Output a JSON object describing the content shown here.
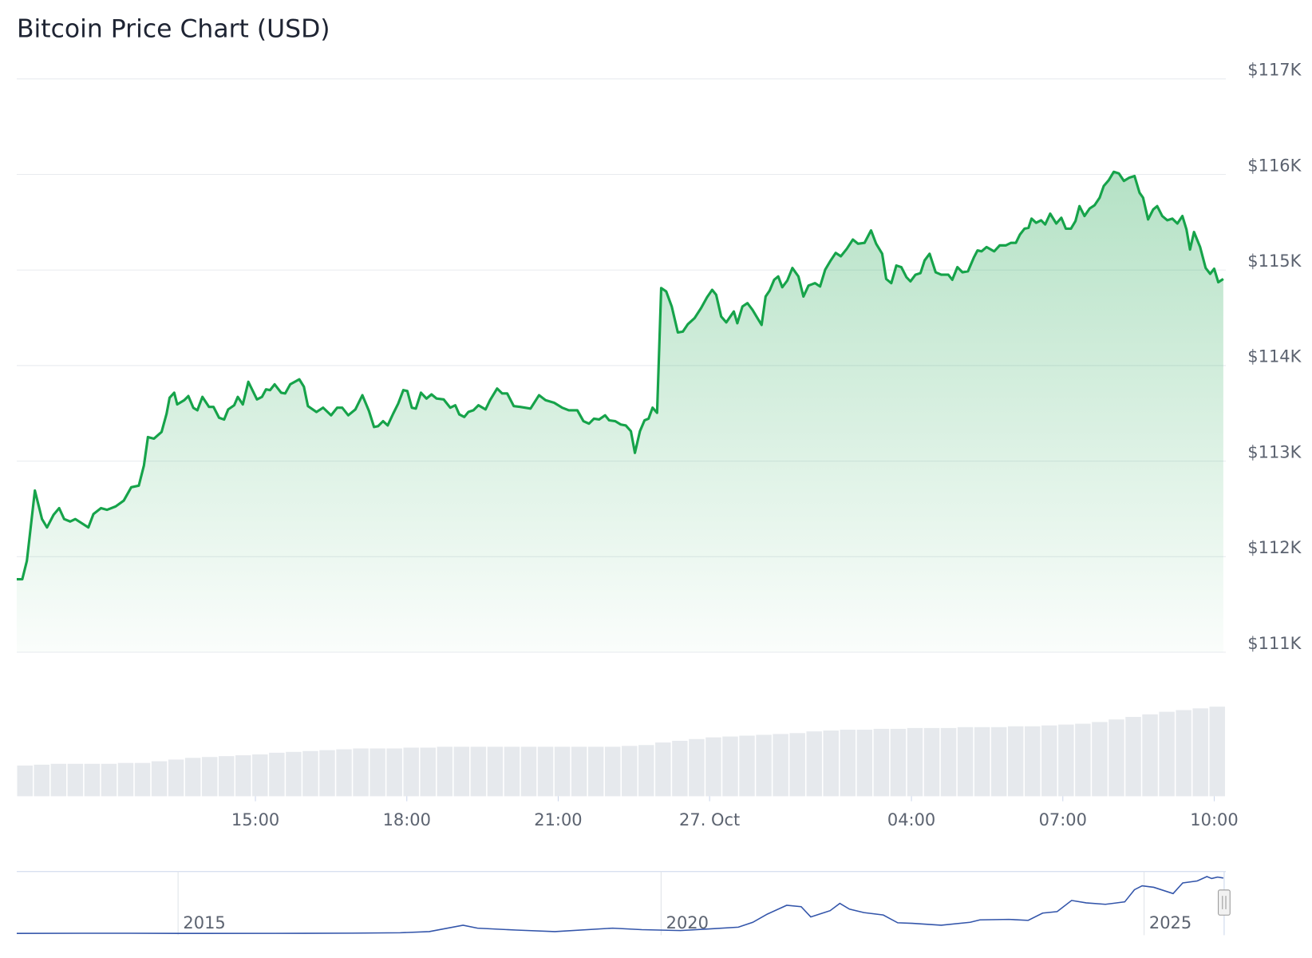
{
  "chart_data": {
    "type": "line",
    "title": "Bitcoin Price Chart (USD)",
    "color": "#16a34a",
    "grid": true,
    "area": true,
    "x": [
      10.27,
      10.38,
      10.47,
      10.63,
      10.77,
      10.87,
      11.0,
      11.11,
      11.21,
      11.33,
      11.43,
      11.69,
      11.79,
      11.94,
      12.06,
      12.23,
      12.39,
      12.54,
      12.69,
      12.79,
      12.87,
      12.99,
      13.14,
      13.24,
      13.3,
      13.39,
      13.45,
      13.59,
      13.67,
      13.77,
      13.85,
      13.95,
      14.08,
      14.17,
      14.28,
      14.38,
      14.46,
      14.58,
      14.65,
      14.75,
      14.86,
      15.03,
      15.13,
      15.21,
      15.29,
      15.38,
      15.51,
      15.59,
      15.69,
      15.87,
      15.96,
      16.04,
      16.21,
      16.34,
      16.5,
      16.62,
      16.72,
      16.84,
      16.98,
      17.12,
      17.25,
      17.35,
      17.43,
      17.53,
      17.62,
      17.73,
      17.83,
      17.93,
      18.01,
      18.1,
      18.18,
      18.28,
      18.39,
      18.49,
      18.59,
      18.73,
      18.86,
      18.96,
      19.04,
      19.14,
      19.22,
      19.32,
      19.42,
      19.56,
      19.65,
      19.79,
      19.89,
      19.99,
      20.12,
      20.25,
      20.45,
      20.62,
      20.75,
      20.92,
      21.08,
      21.21,
      21.38,
      21.5,
      21.61,
      21.71,
      21.81,
      21.93,
      22.01,
      22.13,
      22.24,
      22.34,
      22.44,
      22.52,
      22.62,
      22.71,
      22.79,
      22.87,
      22.96,
      23.04,
      23.14,
      23.25,
      23.37,
      23.47,
      23.57,
      23.7,
      23.83,
      23.95,
      24.05,
      24.13,
      24.23,
      24.33,
      24.48,
      24.55,
      24.65,
      24.75,
      24.85,
      24.95,
      25.03,
      25.11,
      25.19,
      25.28,
      25.36,
      25.44,
      25.54,
      25.64,
      25.76,
      25.86,
      25.96,
      26.09,
      26.19,
      26.29,
      26.4,
      26.5,
      26.6,
      26.72,
      26.84,
      26.94,
      27.07,
      27.2,
      27.3,
      27.42,
      27.5,
      27.6,
      27.7,
      27.8,
      27.9,
      27.98,
      28.08,
      28.18,
      28.26,
      28.36,
      28.48,
      28.59,
      28.73,
      28.81,
      28.91,
      29.01,
      29.12,
      29.24,
      29.31,
      29.39,
      29.49,
      29.64,
      29.75,
      29.87,
      29.97,
      30.07,
      30.15,
      30.24,
      30.32,
      30.38,
      30.47,
      30.57,
      30.65,
      30.75,
      30.87,
      30.97,
      31.06,
      31.16,
      31.25,
      31.33,
      31.43,
      31.53,
      31.63,
      31.73,
      31.81,
      31.91,
      32.01,
      32.11,
      32.21,
      32.32,
      32.42,
      32.52,
      32.59,
      32.69,
      32.79,
      32.87,
      32.97,
      33.07,
      33.17,
      33.27,
      33.37,
      33.45,
      33.52,
      33.6,
      33.72,
      33.83,
      33.92,
      34.0,
      34.08,
      34.18
    ],
    "values": [
      111764,
      111764,
      111956,
      112692,
      112394,
      112306,
      112438,
      112508,
      112394,
      112368,
      112394,
      112306,
      112447,
      112508,
      112491,
      112526,
      112587,
      112727,
      112744,
      112954,
      113252,
      113235,
      113305,
      113497,
      113664,
      113716,
      113594,
      113638,
      113681,
      113558,
      113532,
      113672,
      113567,
      113567,
      113454,
      113436,
      113541,
      113585,
      113672,
      113594,
      113830,
      113646,
      113672,
      113751,
      113743,
      113804,
      113716,
      113708,
      113804,
      113856,
      113778,
      113576,
      113515,
      113559,
      113480,
      113559,
      113559,
      113480,
      113541,
      113690,
      113524,
      113357,
      113366,
      113418,
      113374,
      113497,
      113602,
      113743,
      113734,
      113559,
      113550,
      113716,
      113655,
      113699,
      113655,
      113646,
      113559,
      113585,
      113489,
      113462,
      113515,
      113532,
      113585,
      113541,
      113638,
      113760,
      113708,
      113708,
      113576,
      113567,
      113550,
      113690,
      113638,
      113611,
      113559,
      113532,
      113532,
      113418,
      113392,
      113445,
      113436,
      113480,
      113427,
      113418,
      113383,
      113374,
      113313,
      113086,
      113313,
      113427,
      113445,
      113559,
      113506,
      114811,
      114776,
      114618,
      114347,
      114356,
      114434,
      114496,
      114601,
      114715,
      114793,
      114741,
      114513,
      114452,
      114566,
      114443,
      114618,
      114653,
      114583,
      114496,
      114426,
      114723,
      114785,
      114898,
      114933,
      114820,
      114890,
      115021,
      114933,
      114723,
      114837,
      114863,
      114828,
      115004,
      115100,
      115179,
      115144,
      115223,
      115319,
      115275,
      115284,
      115415,
      115275,
      115170,
      114907,
      114863,
      115047,
      115030,
      114925,
      114881,
      114951,
      114968,
      115100,
      115170,
      114977,
      114951,
      114951,
      114898,
      115030,
      114977,
      114986,
      115135,
      115205,
      115196,
      115240,
      115196,
      115258,
      115258,
      115284,
      115284,
      115372,
      115433,
      115442,
      115538,
      115494,
      115521,
      115477,
      115590,
      115486,
      115547,
      115433,
      115433,
      115512,
      115669,
      115565,
      115643,
      115678,
      115757,
      115879,
      115940,
      116028,
      116011,
      115932,
      115967,
      115984,
      115809,
      115757,
      115529,
      115634,
      115669,
      115565,
      115521,
      115538,
      115486,
      115565,
      115424,
      115214,
      115398,
      115240,
      115021,
      114960,
      115013,
      114872,
      114907
    ],
    "xlim": [
      10.27,
      34.18
    ],
    "xticks": [
      {
        "value": 15,
        "label": "15:00"
      },
      {
        "value": 18,
        "label": "18:00"
      },
      {
        "value": 21,
        "label": "21:00"
      },
      {
        "value": 24,
        "label": "27. Oct"
      },
      {
        "value": 28,
        "label": "04:00"
      },
      {
        "value": 31,
        "label": "07:00"
      },
      {
        "value": 34,
        "label": "10:00"
      }
    ],
    "ylim": [
      111000,
      117000
    ],
    "yticks": [
      {
        "value": 111000,
        "label": "$111K"
      },
      {
        "value": 112000,
        "label": "$112K"
      },
      {
        "value": 113000,
        "label": "$113K"
      },
      {
        "value": 114000,
        "label": "$114K"
      },
      {
        "value": 115000,
        "label": "$115K"
      },
      {
        "value": 116000,
        "label": "$116K"
      },
      {
        "value": 117000,
        "label": "$117K"
      }
    ],
    "volume": {
      "color": "#e6e9ed",
      "values": [
        36,
        37,
        38,
        38,
        38,
        38,
        39,
        39,
        41,
        43,
        45,
        46,
        47,
        48,
        49,
        51,
        52,
        53,
        54,
        55,
        56,
        56,
        56,
        57,
        57,
        58,
        58,
        58,
        58,
        58,
        58,
        58,
        58,
        58,
        58,
        58,
        59,
        60,
        63,
        65,
        67,
        69,
        70,
        71,
        72,
        73,
        74,
        76,
        77,
        78,
        78,
        79,
        79,
        80,
        80,
        80,
        81,
        81,
        81,
        82,
        82,
        83,
        84,
        85,
        87,
        90,
        93,
        96,
        99,
        101,
        103,
        105
      ]
    },
    "navigator": {
      "color": "#3355aa",
      "x": [
        2013.33,
        2014.0,
        2014.5,
        2015.0,
        2016.0,
        2016.8,
        2017.3,
        2017.6,
        2017.95,
        2018.1,
        2018.5,
        2018.9,
        2019.5,
        2019.8,
        2020.2,
        2020.5,
        2020.8,
        2020.95,
        2021.1,
        2021.3,
        2021.45,
        2021.55,
        2021.75,
        2021.85,
        2021.95,
        2022.1,
        2022.3,
        2022.45,
        2022.6,
        2022.9,
        2023.2,
        2023.3,
        2023.6,
        2023.8,
        2023.95,
        2024.1,
        2024.25,
        2024.4,
        2024.6,
        2024.8,
        2024.9,
        2024.98,
        2025.1,
        2025.3,
        2025.4,
        2025.55,
        2025.65,
        2025.7,
        2025.76,
        2025.82
      ],
      "values": [
        100,
        600,
        500,
        250,
        400,
        700,
        1500,
        4000,
        17000,
        11000,
        7000,
        4000,
        11000,
        8000,
        6000,
        9500,
        13000,
        23000,
        40000,
        58000,
        55000,
        34000,
        47000,
        62000,
        50000,
        43000,
        38000,
        22000,
        21000,
        17000,
        23000,
        28000,
        29000,
        27000,
        42000,
        45000,
        68000,
        63000,
        60000,
        65000,
        90000,
        98000,
        95000,
        82000,
        104000,
        108000,
        117000,
        113000,
        116000,
        114000
      ],
      "xlim": [
        2013.33,
        2025.82
      ],
      "xticks": [
        2015,
        2020,
        2025
      ]
    }
  }
}
